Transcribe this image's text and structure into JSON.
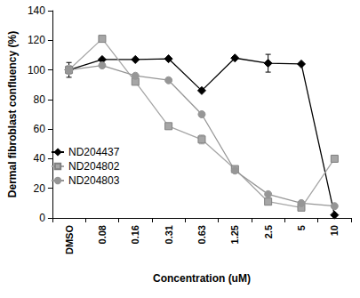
{
  "chart_data": {
    "type": "line",
    "x_label": "Concentration (uM)",
    "y_label": "Dermal fibroblast confluency (%)",
    "categories": [
      "DMSO",
      "0.08",
      "0.16",
      "0.31",
      "0.63",
      "1.25",
      "2.5",
      "5",
      "10"
    ],
    "series": [
      {
        "name": "ND204437",
        "color": "#000000",
        "marker": "diamond",
        "values": [
          100,
          107,
          107,
          107.5,
          86,
          108,
          104.5,
          104,
          2
        ],
        "errors": [
          5,
          0,
          0,
          0,
          0,
          0,
          6,
          0,
          0
        ]
      },
      {
        "name": "ND204802",
        "color": "#a6a6a6",
        "marker": "square",
        "values": [
          100,
          121,
          92,
          62,
          53,
          33,
          11,
          7,
          40
        ],
        "errors": [
          3,
          0,
          0,
          0,
          3,
          0,
          0,
          0,
          0
        ]
      },
      {
        "name": "ND204803",
        "color": "#969696",
        "marker": "circle",
        "values": [
          100,
          103,
          96,
          93,
          70,
          32,
          16,
          10,
          8
        ],
        "errors": [
          2,
          0,
          0,
          0,
          0,
          0,
          0,
          0,
          0
        ]
      }
    ],
    "ylim": [
      0,
      140
    ],
    "yticks": [
      0,
      20,
      40,
      60,
      80,
      100,
      120,
      140
    ],
    "grid": false,
    "legend": "left"
  }
}
